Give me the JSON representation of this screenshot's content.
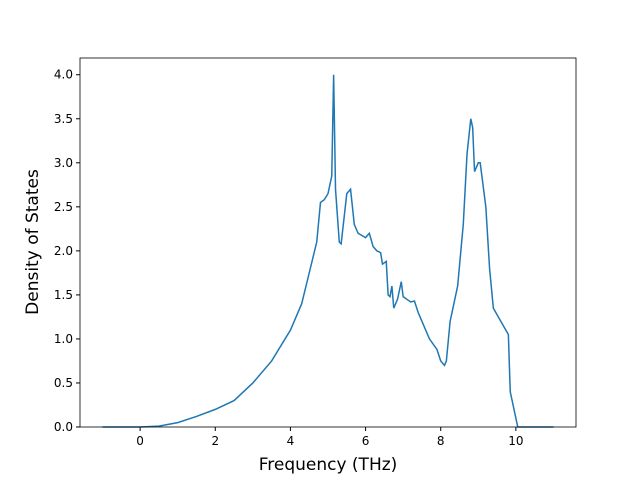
{
  "chart_data": {
    "type": "line",
    "xlabel": "Frequency (THz)",
    "ylabel": "Density of States",
    "x": [
      -1,
      0,
      0.5,
      1,
      1.5,
      2,
      2.5,
      3,
      3.5,
      4,
      4.3,
      4.5,
      4.7,
      4.8,
      4.9,
      5.0,
      5.1,
      5.15,
      5.2,
      5.3,
      5.35,
      5.5,
      5.6,
      5.7,
      5.8,
      6.0,
      6.1,
      6.2,
      6.3,
      6.4,
      6.45,
      6.55,
      6.6,
      6.65,
      6.7,
      6.75,
      6.85,
      6.95,
      7.0,
      7.1,
      7.2,
      7.3,
      7.4,
      7.5,
      7.7,
      7.9,
      8.0,
      8.1,
      8.15,
      8.25,
      8.35,
      8.45,
      8.6,
      8.7,
      8.8,
      8.85,
      8.9,
      9.0,
      9.05,
      9.2,
      9.3,
      9.4,
      9.6,
      9.8,
      9.85,
      10.0,
      10.05,
      11
    ],
    "series": [
      {
        "color": "#1f77b4",
        "values": [
          0,
          0,
          0.01,
          0.05,
          0.12,
          0.2,
          0.3,
          0.5,
          0.75,
          1.1,
          1.4,
          1.75,
          2.1,
          2.55,
          2.58,
          2.65,
          2.85,
          4.0,
          2.7,
          2.1,
          2.08,
          2.65,
          2.7,
          2.3,
          2.2,
          2.15,
          2.2,
          2.05,
          2.0,
          1.98,
          1.85,
          1.88,
          1.5,
          1.48,
          1.6,
          1.35,
          1.45,
          1.65,
          1.48,
          1.45,
          1.42,
          1.43,
          1.3,
          1.2,
          1.0,
          0.88,
          0.75,
          0.7,
          0.75,
          1.2,
          1.4,
          1.6,
          2.3,
          3.1,
          3.5,
          3.4,
          2.9,
          3.0,
          3.0,
          2.5,
          1.8,
          1.35,
          1.2,
          1.05,
          0.4,
          0.1,
          0,
          0
        ]
      }
    ],
    "xlim": [
      -1.6,
      11.6
    ],
    "xticks": [
      0,
      2,
      4,
      6,
      8,
      10
    ],
    "ylim": [
      0,
      4.19
    ],
    "yticks": [
      {
        "value": 0,
        "label": "0.0"
      },
      {
        "value": 0.5,
        "label": "0.5"
      },
      {
        "value": 1,
        "label": "1.0"
      },
      {
        "value": 1.5,
        "label": "1.5"
      },
      {
        "value": 2,
        "label": "2.0"
      },
      {
        "value": 2.5,
        "label": "2.5"
      },
      {
        "value": 3,
        "label": "3.0"
      },
      {
        "value": 3.5,
        "label": "3.5"
      },
      {
        "value": 4,
        "label": "4.0"
      }
    ]
  }
}
